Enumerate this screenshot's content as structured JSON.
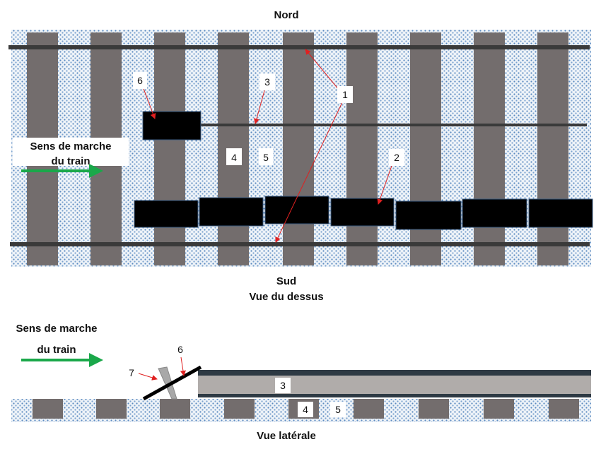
{
  "top_view": {
    "north_label": "Nord",
    "south_label": "Sud",
    "caption": "Vue du dessus",
    "direction_line1": "Sens de marche",
    "direction_line2": "du train",
    "labels": {
      "l1": "1",
      "l2": "2",
      "l3": "3",
      "l4": "4",
      "l5": "5",
      "l6": "6"
    }
  },
  "side_view": {
    "caption": "Vue latérale",
    "direction_line1": "Sens de marche",
    "direction_line2": "du train",
    "labels": {
      "l3": "3",
      "l4": "4",
      "l5": "5",
      "l6": "6",
      "l7": "7"
    }
  },
  "colors": {
    "sleeper": "#736d6d",
    "rail": "#3a3a3a",
    "ballast": "#5a8ac0",
    "arrow": "#e02020",
    "direction": "#1aa84a",
    "side_rail": "#b0acaa"
  }
}
